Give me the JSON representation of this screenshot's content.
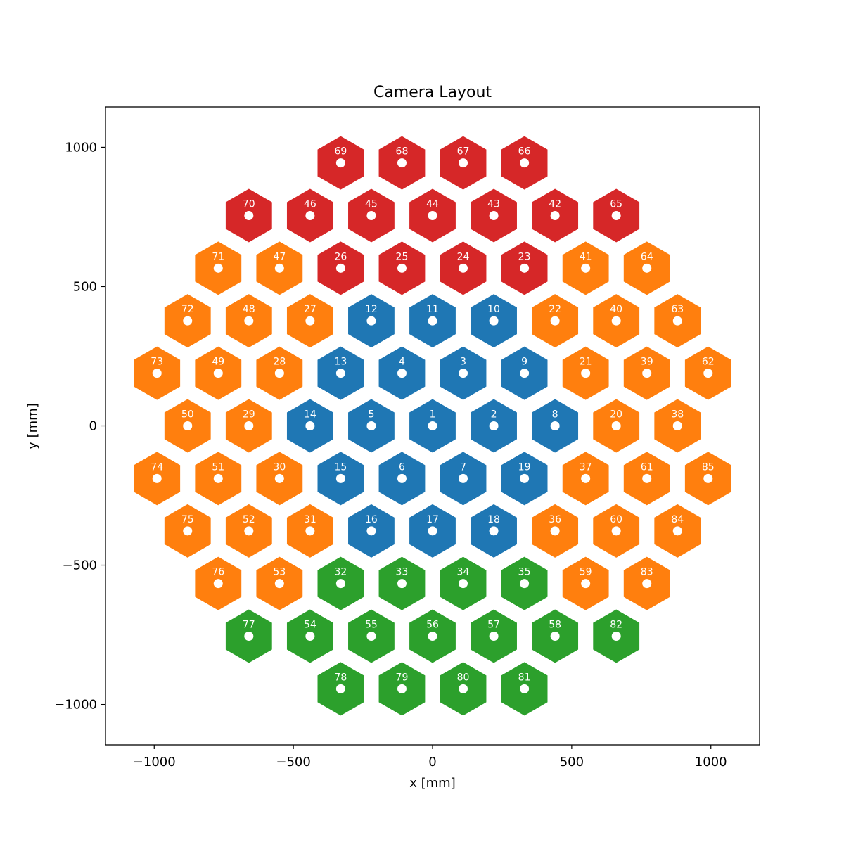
{
  "chart_data": {
    "type": "scatter",
    "title": "Camera Layout",
    "xlabel": "x [mm]",
    "ylabel": "y [mm]",
    "xlim": [
      -1175,
      1175
    ],
    "ylim": [
      -1145,
      1145
    ],
    "grid": false,
    "xticks": [
      {
        "value": -1000,
        "label": "−1000"
      },
      {
        "value": -500,
        "label": "−500"
      },
      {
        "value": 0,
        "label": "0"
      },
      {
        "value": 500,
        "label": "500"
      },
      {
        "value": 1000,
        "label": "1000"
      }
    ],
    "yticks": [
      {
        "value": 1000,
        "label": "1000"
      },
      {
        "value": 500,
        "label": "500"
      },
      {
        "value": 0,
        "label": "0"
      },
      {
        "value": -500,
        "label": "−500"
      },
      {
        "value": -1000,
        "label": "−1000"
      }
    ],
    "colors": {
      "red": "#d62728",
      "orange": "#ff7f0e",
      "blue": "#1f77b4",
      "green": "#2ca02c",
      "marker": "#ffffff"
    },
    "modules": [
      {
        "id": "69",
        "x": -330,
        "y": 944,
        "group": "red"
      },
      {
        "id": "68",
        "x": -110,
        "y": 944,
        "group": "red"
      },
      {
        "id": "67",
        "x": 110,
        "y": 944,
        "group": "red"
      },
      {
        "id": "66",
        "x": 330,
        "y": 944,
        "group": "red"
      },
      {
        "id": "70",
        "x": -660,
        "y": 755,
        "group": "red"
      },
      {
        "id": "46",
        "x": -440,
        "y": 755,
        "group": "red"
      },
      {
        "id": "45",
        "x": -220,
        "y": 755,
        "group": "red"
      },
      {
        "id": "44",
        "x": 0,
        "y": 755,
        "group": "red"
      },
      {
        "id": "43",
        "x": 220,
        "y": 755,
        "group": "red"
      },
      {
        "id": "42",
        "x": 440,
        "y": 755,
        "group": "red"
      },
      {
        "id": "65",
        "x": 660,
        "y": 755,
        "group": "red"
      },
      {
        "id": "71",
        "x": -770,
        "y": 566,
        "group": "orange"
      },
      {
        "id": "47",
        "x": -550,
        "y": 566,
        "group": "orange"
      },
      {
        "id": "26",
        "x": -330,
        "y": 566,
        "group": "red"
      },
      {
        "id": "25",
        "x": -110,
        "y": 566,
        "group": "red"
      },
      {
        "id": "24",
        "x": 110,
        "y": 566,
        "group": "red"
      },
      {
        "id": "23",
        "x": 330,
        "y": 566,
        "group": "red"
      },
      {
        "id": "41",
        "x": 550,
        "y": 566,
        "group": "orange"
      },
      {
        "id": "64",
        "x": 770,
        "y": 566,
        "group": "orange"
      },
      {
        "id": "72",
        "x": -880,
        "y": 377,
        "group": "orange"
      },
      {
        "id": "48",
        "x": -660,
        "y": 377,
        "group": "orange"
      },
      {
        "id": "27",
        "x": -440,
        "y": 377,
        "group": "orange"
      },
      {
        "id": "12",
        "x": -220,
        "y": 377,
        "group": "blue"
      },
      {
        "id": "11",
        "x": 0,
        "y": 377,
        "group": "blue"
      },
      {
        "id": "10",
        "x": 220,
        "y": 377,
        "group": "blue"
      },
      {
        "id": "22",
        "x": 440,
        "y": 377,
        "group": "orange"
      },
      {
        "id": "40",
        "x": 660,
        "y": 377,
        "group": "orange"
      },
      {
        "id": "63",
        "x": 880,
        "y": 377,
        "group": "orange"
      },
      {
        "id": "73",
        "x": -990,
        "y": 189,
        "group": "orange"
      },
      {
        "id": "49",
        "x": -770,
        "y": 189,
        "group": "orange"
      },
      {
        "id": "28",
        "x": -550,
        "y": 189,
        "group": "orange"
      },
      {
        "id": "13",
        "x": -330,
        "y": 189,
        "group": "blue"
      },
      {
        "id": "4",
        "x": -110,
        "y": 189,
        "group": "blue"
      },
      {
        "id": "3",
        "x": 110,
        "y": 189,
        "group": "blue"
      },
      {
        "id": "9",
        "x": 330,
        "y": 189,
        "group": "blue"
      },
      {
        "id": "21",
        "x": 550,
        "y": 189,
        "group": "orange"
      },
      {
        "id": "39",
        "x": 770,
        "y": 189,
        "group": "orange"
      },
      {
        "id": "62",
        "x": 990,
        "y": 189,
        "group": "orange"
      },
      {
        "id": "50",
        "x": -880,
        "y": 0,
        "group": "orange"
      },
      {
        "id": "29",
        "x": -660,
        "y": 0,
        "group": "orange"
      },
      {
        "id": "14",
        "x": -440,
        "y": 0,
        "group": "blue"
      },
      {
        "id": "5",
        "x": -220,
        "y": 0,
        "group": "blue"
      },
      {
        "id": "1",
        "x": 0,
        "y": 0,
        "group": "blue"
      },
      {
        "id": "2",
        "x": 220,
        "y": 0,
        "group": "blue"
      },
      {
        "id": "8",
        "x": 440,
        "y": 0,
        "group": "blue"
      },
      {
        "id": "20",
        "x": 660,
        "y": 0,
        "group": "orange"
      },
      {
        "id": "38",
        "x": 880,
        "y": 0,
        "group": "orange"
      },
      {
        "id": "74",
        "x": -990,
        "y": -189,
        "group": "orange"
      },
      {
        "id": "51",
        "x": -770,
        "y": -189,
        "group": "orange"
      },
      {
        "id": "30",
        "x": -550,
        "y": -189,
        "group": "orange"
      },
      {
        "id": "15",
        "x": -330,
        "y": -189,
        "group": "blue"
      },
      {
        "id": "6",
        "x": -110,
        "y": -189,
        "group": "blue"
      },
      {
        "id": "7",
        "x": 110,
        "y": -189,
        "group": "blue"
      },
      {
        "id": "19",
        "x": 330,
        "y": -189,
        "group": "blue"
      },
      {
        "id": "37",
        "x": 550,
        "y": -189,
        "group": "orange"
      },
      {
        "id": "61",
        "x": 770,
        "y": -189,
        "group": "orange"
      },
      {
        "id": "85",
        "x": 990,
        "y": -189,
        "group": "orange"
      },
      {
        "id": "75",
        "x": -880,
        "y": -377,
        "group": "orange"
      },
      {
        "id": "52",
        "x": -660,
        "y": -377,
        "group": "orange"
      },
      {
        "id": "31",
        "x": -440,
        "y": -377,
        "group": "orange"
      },
      {
        "id": "16",
        "x": -220,
        "y": -377,
        "group": "blue"
      },
      {
        "id": "17",
        "x": 0,
        "y": -377,
        "group": "blue"
      },
      {
        "id": "18",
        "x": 220,
        "y": -377,
        "group": "blue"
      },
      {
        "id": "36",
        "x": 440,
        "y": -377,
        "group": "orange"
      },
      {
        "id": "60",
        "x": 660,
        "y": -377,
        "group": "orange"
      },
      {
        "id": "84",
        "x": 880,
        "y": -377,
        "group": "orange"
      },
      {
        "id": "76",
        "x": -770,
        "y": -566,
        "group": "orange"
      },
      {
        "id": "53",
        "x": -550,
        "y": -566,
        "group": "orange"
      },
      {
        "id": "32",
        "x": -330,
        "y": -566,
        "group": "green"
      },
      {
        "id": "33",
        "x": -110,
        "y": -566,
        "group": "green"
      },
      {
        "id": "34",
        "x": 110,
        "y": -566,
        "group": "green"
      },
      {
        "id": "35",
        "x": 330,
        "y": -566,
        "group": "green"
      },
      {
        "id": "59",
        "x": 550,
        "y": -566,
        "group": "orange"
      },
      {
        "id": "83",
        "x": 770,
        "y": -566,
        "group": "orange"
      },
      {
        "id": "77",
        "x": -660,
        "y": -755,
        "group": "green"
      },
      {
        "id": "54",
        "x": -440,
        "y": -755,
        "group": "green"
      },
      {
        "id": "55",
        "x": -220,
        "y": -755,
        "group": "green"
      },
      {
        "id": "56",
        "x": 0,
        "y": -755,
        "group": "green"
      },
      {
        "id": "57",
        "x": 220,
        "y": -755,
        "group": "green"
      },
      {
        "id": "58",
        "x": 440,
        "y": -755,
        "group": "green"
      },
      {
        "id": "82",
        "x": 660,
        "y": -755,
        "group": "green"
      },
      {
        "id": "78",
        "x": -330,
        "y": -944,
        "group": "green"
      },
      {
        "id": "79",
        "x": -110,
        "y": -944,
        "group": "green"
      },
      {
        "id": "80",
        "x": 110,
        "y": -944,
        "group": "green"
      },
      {
        "id": "81",
        "x": 330,
        "y": -944,
        "group": "green"
      }
    ]
  }
}
